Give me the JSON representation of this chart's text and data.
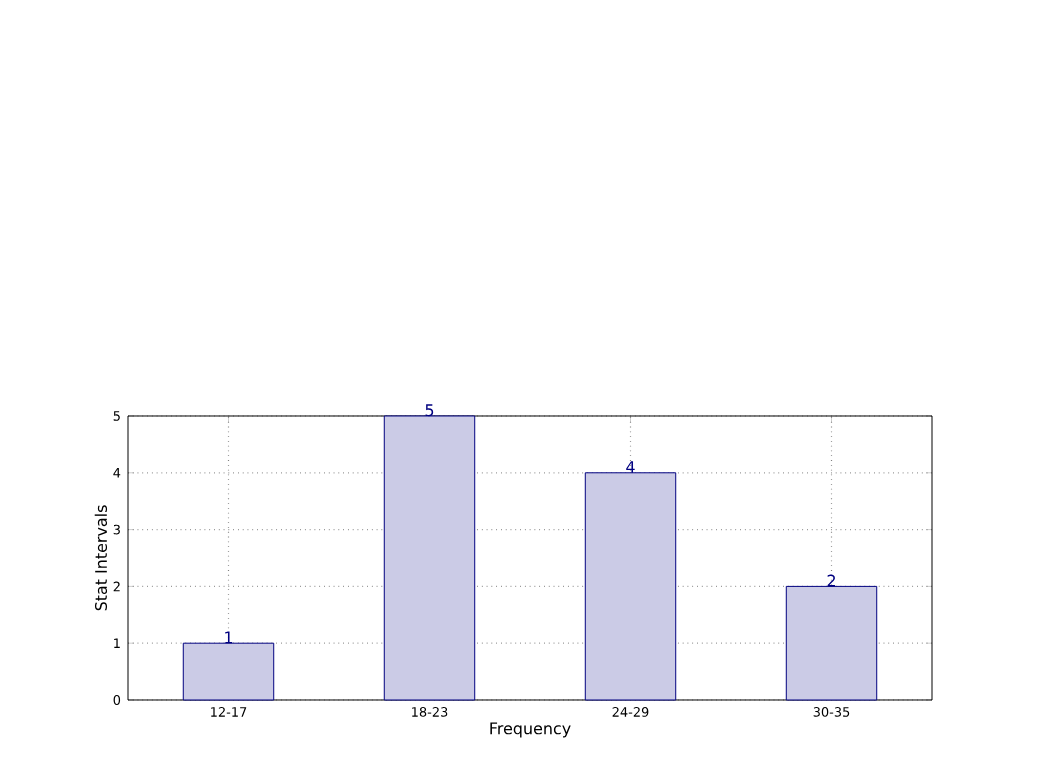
{
  "chart_data": {
    "type": "bar",
    "xlabel": "Frequency",
    "ylabel": "Stat Intervals",
    "categories": [
      "12-17",
      "18-23",
      "24-29",
      "30-35"
    ],
    "values": [
      1,
      5,
      4,
      2
    ],
    "color": "#cbcbe6",
    "ylim": [
      0,
      5
    ],
    "yticks": [
      0,
      1,
      2,
      3,
      4,
      5
    ],
    "grid": true,
    "data_labels": true
  }
}
